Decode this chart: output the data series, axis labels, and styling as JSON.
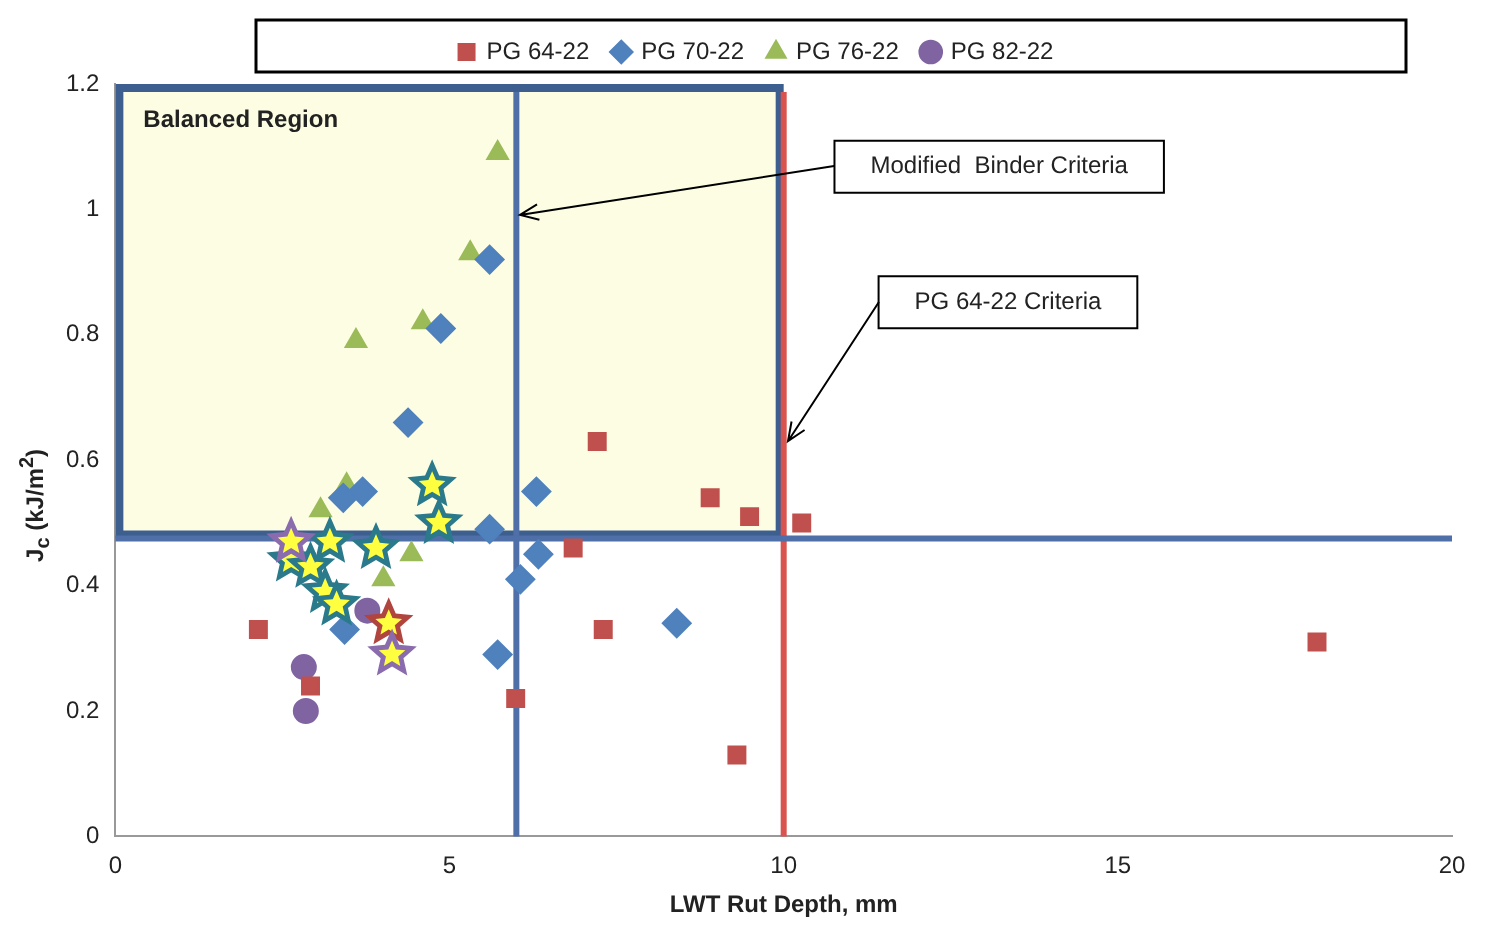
{
  "chart_data": {
    "type": "scatter",
    "xlabel": "LWT Rut Depth, mm",
    "ylabel": "J$_{c}$ (kJ/m$^{2}$)",
    "xlim": [
      0,
      20
    ],
    "ylim": [
      0,
      1.2
    ],
    "xticks": [
      0,
      5,
      10,
      15,
      20
    ],
    "yticks": [
      0,
      0.2,
      0.4,
      0.6,
      0.8,
      1,
      1.2
    ],
    "grid": false,
    "legend": "top",
    "series": [
      {
        "name": "PG 64-22",
        "color": "#c0504d",
        "marker": "square",
        "x": [
          2.14,
          2.92,
          5.99,
          6.85,
          7.21,
          7.3,
          8.9,
          9.49,
          10.27,
          9.3,
          17.98
        ],
        "values": [
          0.33,
          0.24,
          0.22,
          0.46,
          0.63,
          0.33,
          0.54,
          0.51,
          0.5,
          0.13,
          0.31
        ]
      },
      {
        "name": "PG 70-22",
        "color": "#4f81bd",
        "marker": "diamond",
        "x": [
          5.6,
          4.87,
          4.38,
          3.7,
          3.41,
          6.3,
          5.6,
          6.33,
          6.06,
          5.72,
          3.43,
          8.4
        ],
        "values": [
          0.92,
          0.81,
          0.66,
          0.55,
          0.54,
          0.55,
          0.49,
          0.45,
          0.41,
          0.29,
          0.33,
          0.34
        ]
      },
      {
        "name": "PG 76-22",
        "color": "#9bbb59",
        "marker": "triangle",
        "x": [
          5.72,
          5.31,
          4.6,
          3.6,
          3.46,
          3.07,
          4.43,
          4.01
        ],
        "values": [
          1.09,
          0.93,
          0.82,
          0.79,
          0.56,
          0.52,
          0.45,
          0.41
        ]
      },
      {
        "name": "PG 82-22",
        "color": "#8064a2",
        "marker": "circle",
        "x": [
          2.82,
          2.85,
          3.77
        ],
        "values": [
          0.27,
          0.2,
          0.36
        ]
      },
      {
        "color": "#2a7a8c",
        "marker": "star",
        "x": [
          4.74,
          4.84,
          3.9,
          2.63,
          2.92,
          3.14,
          3.31,
          3.21
        ],
        "values": [
          0.56,
          0.5,
          0.46,
          0.44,
          0.43,
          0.39,
          0.37,
          0.47
        ]
      },
      {
        "color": "#b0443f",
        "marker": "star",
        "x": [
          4.09
        ],
        "values": [
          0.34
        ]
      },
      {
        "color": "#8a6cae",
        "marker": "star",
        "x": [
          4.14,
          2.63
        ],
        "values": [
          0.29,
          0.47
        ]
      }
    ],
    "ref_lines": [
      {
        "axis": "x",
        "value": 6,
        "color": "#4f6fa8"
      },
      {
        "axis": "x",
        "value": 10,
        "color": "#d9534f"
      },
      {
        "axis": "y",
        "value": 0.475,
        "color": "#4f6fa8"
      }
    ],
    "bands": [
      {
        "axis": "y",
        "from": 0.475,
        "to": 1.2,
        "label": "Balanced Region",
        "color": "#fdfde3"
      }
    ],
    "annotations": [
      "Modified  Binder Criteria",
      "PG 64-22 Criteria"
    ]
  }
}
